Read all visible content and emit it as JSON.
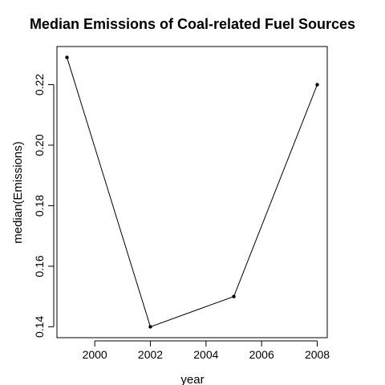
{
  "chart_data": {
    "type": "line",
    "title": "Median Emissions of Coal-related Fuel Sources",
    "xlabel": "year",
    "ylabel": "median(Emissions)",
    "x": [
      1999,
      2002,
      2005,
      2008
    ],
    "series": [
      {
        "values": [
          0.229,
          0.14,
          0.15,
          0.22
        ]
      }
    ],
    "xlim": [
      1998.64,
      2008.36
    ],
    "ylim": [
      0.1364,
      0.2326
    ],
    "xticks": [
      2000,
      2002,
      2004,
      2006,
      2008
    ],
    "xtick_labels": [
      "2000",
      "2002",
      "2004",
      "2006",
      "2008"
    ],
    "yticks": [
      0.14,
      0.16,
      0.18,
      0.2,
      0.22
    ],
    "ytick_labels": [
      "0.14",
      "0.16",
      "0.18",
      "0.20",
      "0.22"
    ],
    "grid": false,
    "legend": "none",
    "colors": {
      "line": "#000000",
      "points": "#000000",
      "axes": "#000000"
    }
  }
}
